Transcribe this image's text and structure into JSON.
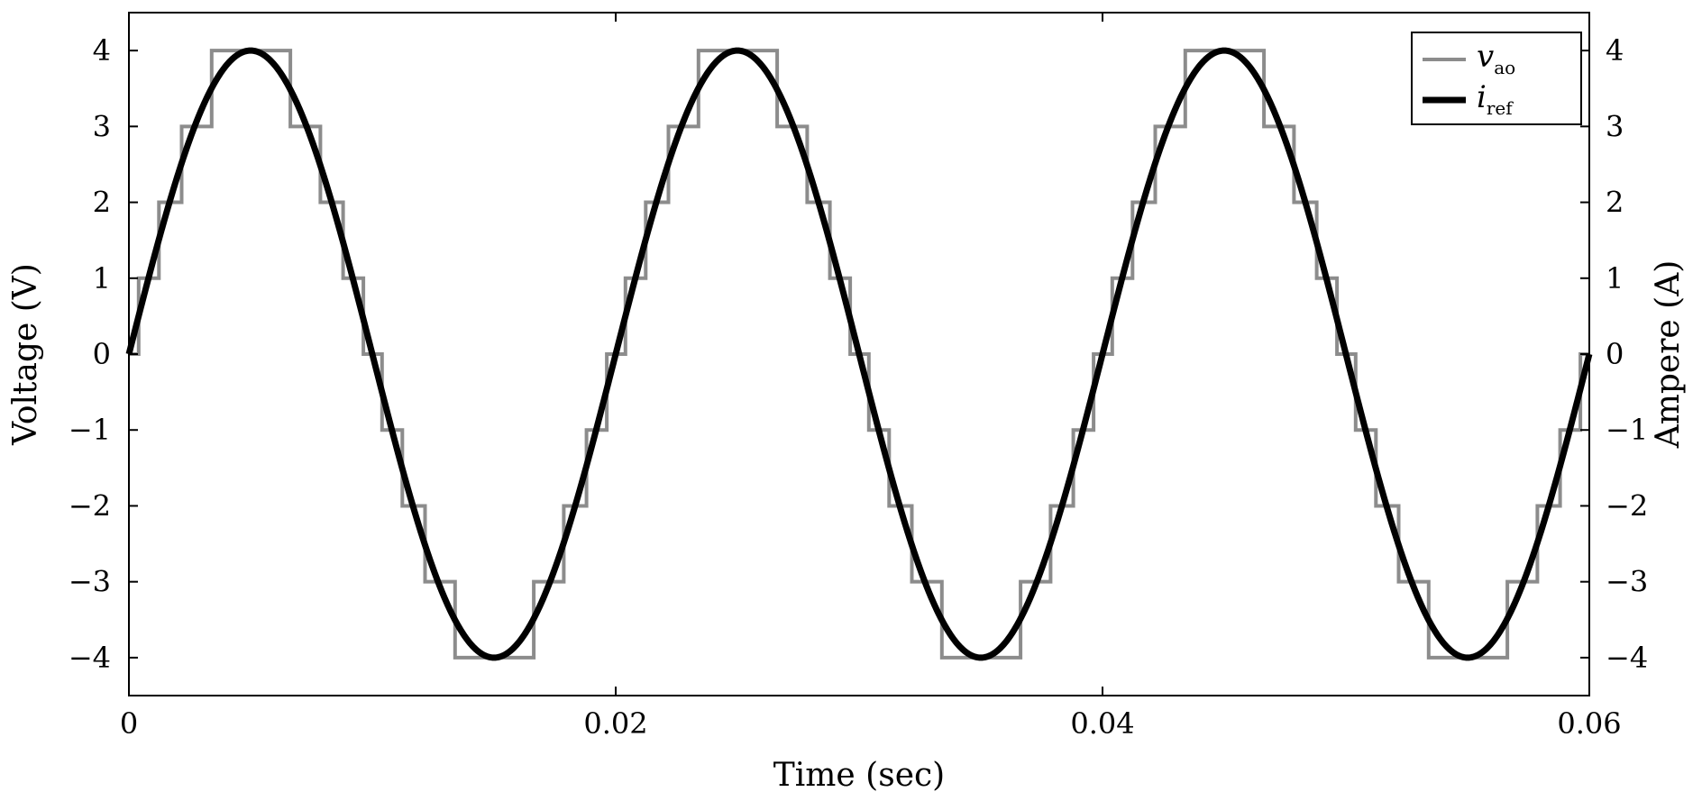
{
  "chart_data": {
    "type": "line",
    "xlabel": "Time (sec)",
    "ylabel_left": "Voltage (V)",
    "ylabel_right": "Ampere (A)",
    "xlim": [
      0,
      0.06
    ],
    "ylim": [
      -4.5,
      4.5
    ],
    "x_ticks": [
      0,
      0.02,
      0.04,
      0.06
    ],
    "x_tick_labels": [
      "0",
      "0.02",
      "0.04",
      "0.06"
    ],
    "y_ticks": [
      4,
      3,
      2,
      1,
      0,
      -1,
      -2,
      -3,
      -4
    ],
    "y_tick_labels": [
      "4",
      "3",
      "2",
      "1",
      "0",
      "−1",
      "−2",
      "−3",
      "−4"
    ],
    "legend_position": "top-right",
    "grid": false,
    "series": [
      {
        "name": "v_ao",
        "legend_main": "v",
        "legend_sub": "ao",
        "style": "staircase",
        "color": "#8c8c8c",
        "amplitude": 4,
        "frequency_hz": 50,
        "levels": [
          -4,
          -3,
          -2,
          -1,
          0,
          1,
          2,
          3,
          4
        ],
        "t_start": 0,
        "t_end": 0.06
      },
      {
        "name": "i_ref",
        "legend_main": "i",
        "legend_sub": "ref",
        "style": "smooth",
        "color": "#000000",
        "amplitude": 4,
        "frequency_hz": 50,
        "t_start": 0,
        "t_end": 0.06
      }
    ]
  }
}
